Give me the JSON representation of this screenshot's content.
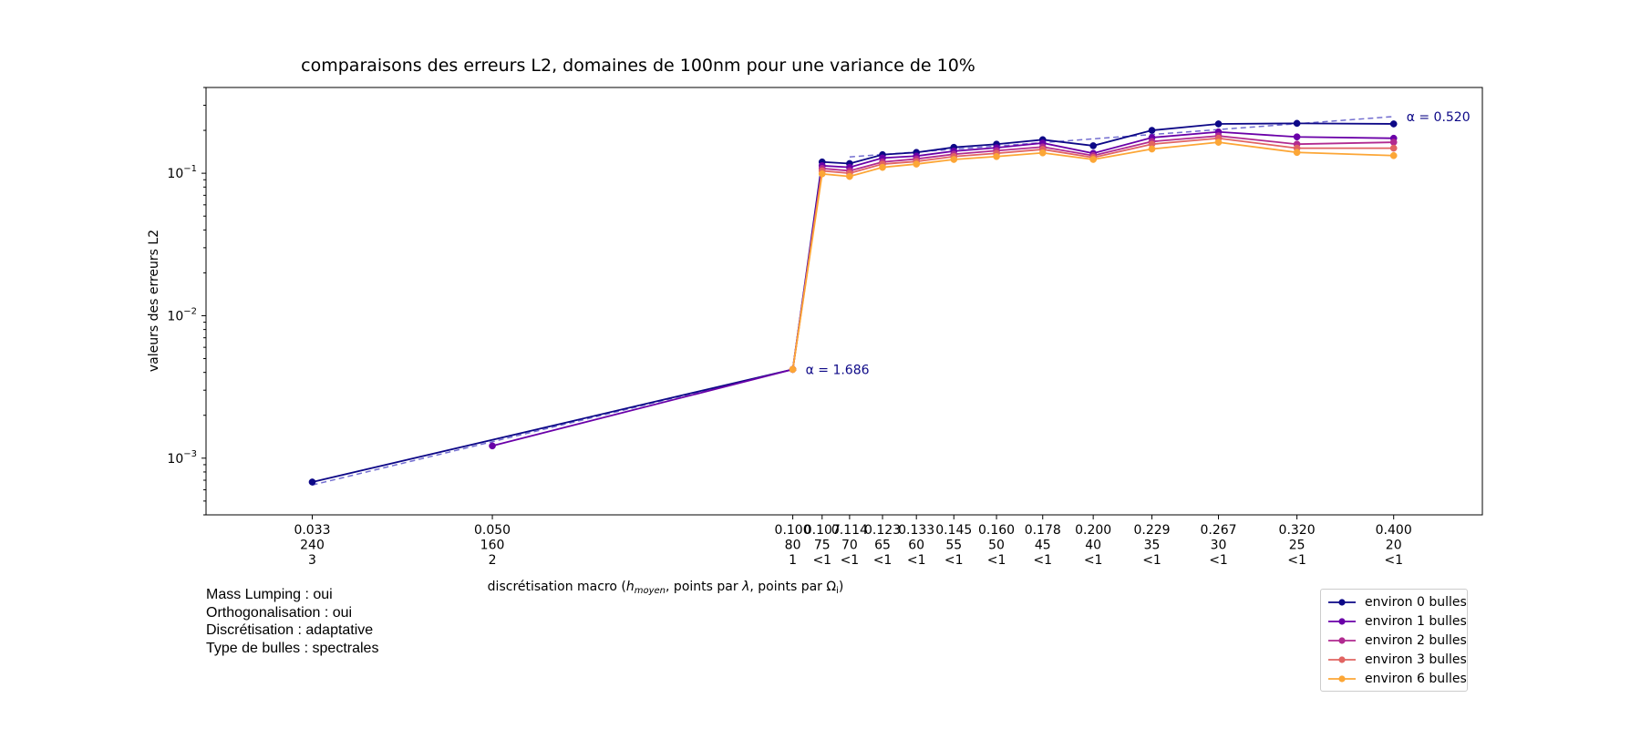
{
  "chart_data": {
    "type": "line",
    "title": "comparaisons des erreurs L2, domaines de 100nm pour une variance de 10%",
    "ylabel": "valeurs des erreurs L2",
    "xlabel_parts": [
      "discrétisation macro (",
      "h",
      "moyen",
      ", points par ",
      "λ",
      ", points par Ω",
      "i",
      ")"
    ],
    "yscale": "log",
    "ylim": [
      0.0004,
      0.4
    ],
    "y_ticks": [
      {
        "value": 0.001,
        "base": "10",
        "exp": "−3"
      },
      {
        "value": 0.01,
        "base": "10",
        "exp": "−2"
      },
      {
        "value": 0.1,
        "base": "10",
        "exp": "−1"
      }
    ],
    "x_ticks": [
      {
        "h": 0.033,
        "label": [
          "0.033",
          "240",
          "3"
        ]
      },
      {
        "h": 0.05,
        "label": [
          "0.050",
          "160",
          "2"
        ]
      },
      {
        "h": 0.1,
        "label": [
          "0.100",
          "80",
          "1"
        ]
      },
      {
        "h": 0.107,
        "label": [
          "0.107",
          "75",
          "<1"
        ]
      },
      {
        "h": 0.114,
        "label": [
          "0.114",
          "70",
          "<1"
        ]
      },
      {
        "h": 0.123,
        "label": [
          "0.123",
          "65",
          "<1"
        ]
      },
      {
        "h": 0.133,
        "label": [
          "0.133",
          "60",
          "<1"
        ]
      },
      {
        "h": 0.145,
        "label": [
          "0.145",
          "55",
          "<1"
        ]
      },
      {
        "h": 0.16,
        "label": [
          "0.160",
          "50",
          "<1"
        ]
      },
      {
        "h": 0.178,
        "label": [
          "0.178",
          "45",
          "<1"
        ]
      },
      {
        "h": 0.2,
        "label": [
          "0.200",
          "40",
          "<1"
        ]
      },
      {
        "h": 0.229,
        "label": [
          "0.229",
          "35",
          "<1"
        ]
      },
      {
        "h": 0.267,
        "label": [
          "0.267",
          "30",
          "<1"
        ]
      },
      {
        "h": 0.32,
        "label": [
          "0.320",
          "25",
          "<1"
        ]
      },
      {
        "h": 0.4,
        "label": [
          "0.400",
          "20",
          "<1"
        ]
      }
    ],
    "series": [
      {
        "name": "environ 0 bulles",
        "color": "#0d0887",
        "points": [
          [
            0.033,
            0.00068
          ],
          [
            0.05,
            null
          ],
          [
            0.1,
            0.0042
          ],
          [
            0.107,
            0.12
          ],
          [
            0.114,
            0.117
          ],
          [
            0.123,
            0.135
          ],
          [
            0.133,
            0.14
          ],
          [
            0.145,
            0.152
          ],
          [
            0.16,
            0.16
          ],
          [
            0.178,
            0.172
          ],
          [
            0.2,
            0.156
          ],
          [
            0.229,
            0.2
          ],
          [
            0.267,
            0.222
          ],
          [
            0.32,
            0.224
          ],
          [
            0.4,
            0.222
          ]
        ]
      },
      {
        "name": "environ 1 bulles",
        "color": "#6a00a8",
        "points": [
          [
            0.033,
            null
          ],
          [
            0.05,
            0.00122
          ],
          [
            0.1,
            0.0042
          ],
          [
            0.107,
            0.113
          ],
          [
            0.114,
            0.11
          ],
          [
            0.123,
            0.128
          ],
          [
            0.133,
            0.132
          ],
          [
            0.145,
            0.143
          ],
          [
            0.16,
            0.151
          ],
          [
            0.178,
            0.163
          ],
          [
            0.2,
            0.138
          ],
          [
            0.229,
            0.178
          ],
          [
            0.267,
            0.195
          ],
          [
            0.32,
            0.18
          ],
          [
            0.4,
            0.176
          ]
        ]
      },
      {
        "name": "environ 2 bulles",
        "color": "#b12a90",
        "points": [
          [
            0.033,
            null
          ],
          [
            0.05,
            null
          ],
          [
            0.1,
            0.0042
          ],
          [
            0.107,
            0.108
          ],
          [
            0.114,
            0.104
          ],
          [
            0.123,
            0.12
          ],
          [
            0.133,
            0.126
          ],
          [
            0.145,
            0.136
          ],
          [
            0.16,
            0.144
          ],
          [
            0.178,
            0.153
          ],
          [
            0.2,
            0.133
          ],
          [
            0.229,
            0.167
          ],
          [
            0.267,
            0.183
          ],
          [
            0.32,
            0.16
          ],
          [
            0.4,
            0.165
          ]
        ]
      },
      {
        "name": "environ 3 bulles",
        "color": "#e16462",
        "points": [
          [
            0.033,
            null
          ],
          [
            0.05,
            null
          ],
          [
            0.1,
            0.0042
          ],
          [
            0.107,
            0.104
          ],
          [
            0.114,
            0.1
          ],
          [
            0.123,
            0.116
          ],
          [
            0.133,
            0.121
          ],
          [
            0.145,
            0.131
          ],
          [
            0.16,
            0.138
          ],
          [
            0.178,
            0.147
          ],
          [
            0.2,
            0.129
          ],
          [
            0.229,
            0.16
          ],
          [
            0.267,
            0.176
          ],
          [
            0.32,
            0.15
          ],
          [
            0.4,
            0.15
          ]
        ]
      },
      {
        "name": "environ 6 bulles",
        "color": "#fca636",
        "points": [
          [
            0.033,
            null
          ],
          [
            0.05,
            null
          ],
          [
            0.1,
            0.0042
          ],
          [
            0.107,
            0.099
          ],
          [
            0.114,
            0.095
          ],
          [
            0.123,
            0.11
          ],
          [
            0.133,
            0.116
          ],
          [
            0.145,
            0.125
          ],
          [
            0.16,
            0.131
          ],
          [
            0.178,
            0.139
          ],
          [
            0.2,
            0.125
          ],
          [
            0.229,
            0.148
          ],
          [
            0.267,
            0.165
          ],
          [
            0.32,
            0.14
          ],
          [
            0.4,
            0.133
          ]
        ]
      }
    ],
    "fits": [
      {
        "color": "#5a55c8",
        "h_range": [
          0.033,
          0.1
        ],
        "alpha": 1.686,
        "y_at_end": 0.0042,
        "label": "α = 1.686"
      },
      {
        "color": "#5a55c8",
        "h_range": [
          0.114,
          0.4
        ],
        "alpha": 0.52,
        "y_at_end": 0.25,
        "label": "α = 0.520"
      }
    ],
    "legend_position": "lower-right"
  },
  "info": {
    "lines": [
      "Mass Lumping : oui",
      "Orthogonalisation : oui",
      "Discrétisation : adaptative",
      "Type de bulles : spectrales"
    ]
  }
}
